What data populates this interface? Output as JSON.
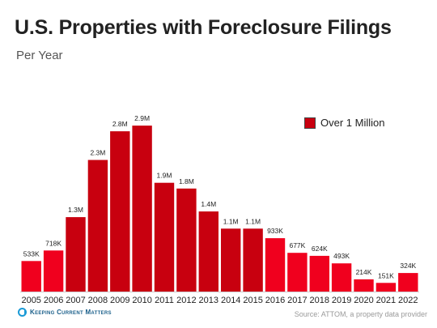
{
  "header": {
    "title": "U.S. Properties with Foreclosure Filings",
    "subtitle": "Per Year"
  },
  "legend": {
    "label": "Over 1 Million"
  },
  "footer": {
    "logo_text": "Keeping Current Matters",
    "source": "Source: ATTOM, a property data provider"
  },
  "colors": {
    "over_million": "#c8000f",
    "under_million": "#f0001e"
  },
  "chart_data": {
    "type": "bar",
    "title": "U.S. Properties with Foreclosure Filings",
    "subtitle": "Per Year",
    "categories": [
      "2005",
      "2006",
      "2007",
      "2008",
      "2009",
      "2010",
      "2011",
      "2012",
      "2013",
      "2014",
      "2015",
      "2016",
      "2017",
      "2018",
      "2019",
      "2020",
      "2021",
      "2022"
    ],
    "values": [
      533000,
      718000,
      1300000,
      2300000,
      2800000,
      2900000,
      1900000,
      1800000,
      1400000,
      1100000,
      1100000,
      933000,
      677000,
      624000,
      493000,
      214000,
      151000,
      324000
    ],
    "data_labels": [
      "533K",
      "718K",
      "1.3M",
      "2.3M",
      "2.8M",
      "2.9M",
      "1.9M",
      "1.8M",
      "1.4M",
      "1.1M",
      "1.1M",
      "933K",
      "677K",
      "624K",
      "493K",
      "214K",
      "151K",
      "324K"
    ],
    "over_million": [
      false,
      false,
      true,
      true,
      true,
      true,
      true,
      true,
      true,
      true,
      true,
      false,
      false,
      false,
      false,
      false,
      false,
      false
    ],
    "ylim": [
      0,
      3000000
    ],
    "legend": [
      "Over 1 Million"
    ],
    "legend_position": "top-right",
    "grid": false
  }
}
